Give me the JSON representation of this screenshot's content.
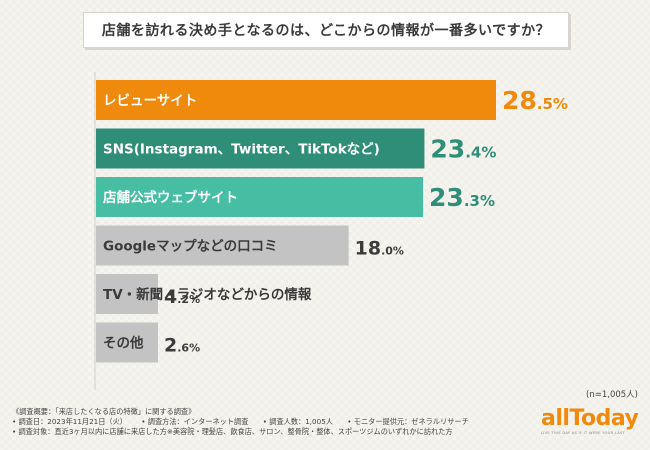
{
  "title": "店舗を訪れる決め手となるのは、どこからの情報が一番多いですか？",
  "chart_data": {
    "type": "bar",
    "orientation": "horizontal",
    "title": "店舗を訪れる決め手となるのは、どこからの情報が一番多いですか？",
    "unit": "%",
    "categories": [
      "レビューサイト",
      "SNS(Instagram、Twitter、TikTokなど)",
      "店舗公式ウェブサイト",
      "Googleマップなどの口コミ",
      "TV・新聞・ラジオなどからの情報",
      "その他"
    ],
    "values": [
      28.5,
      23.4,
      23.3,
      18.0,
      4.2,
      2.6
    ],
    "colors": [
      "#ef8a0d",
      "#2f8e78",
      "#47bea3",
      "#c3c3c3",
      "#c3c3c3",
      "#c3c3c3"
    ],
    "label_colors": [
      "#ffffff",
      "#ffffff",
      "#ffffff",
      "#3b3b3b",
      "#3b3b3b",
      "#3b3b3b"
    ],
    "value_colors": [
      "#ef8a0d",
      "#2f8e78",
      "#2f8e78",
      "#3b3b3b",
      "#3b3b3b",
      "#3b3b3b"
    ],
    "xlim": [
      0,
      28.5
    ]
  },
  "sample_size": "(n=1,005人)",
  "footer": {
    "line1": "《調査概要：「来店したくなる店の特徴」に関する調査》",
    "line2_items": [
      "• 調査日：2023年11月21日（火）",
      "• 調査方法：インターネット調査",
      "• 調査人数：1,005人",
      "• モニター提供元：ゼネラルリサーチ"
    ],
    "line3": "• 調査対象：直近3ヶ月以内に店舗に来店した方※美容院・理髪店、飲食店、サロン、整骨院・整体、スポーツジムのいずれかに訪れた方"
  },
  "logo": {
    "text": "allToday",
    "tagline": "LIVE THIS DAY AS IF IT WERE YOUR LAST"
  }
}
